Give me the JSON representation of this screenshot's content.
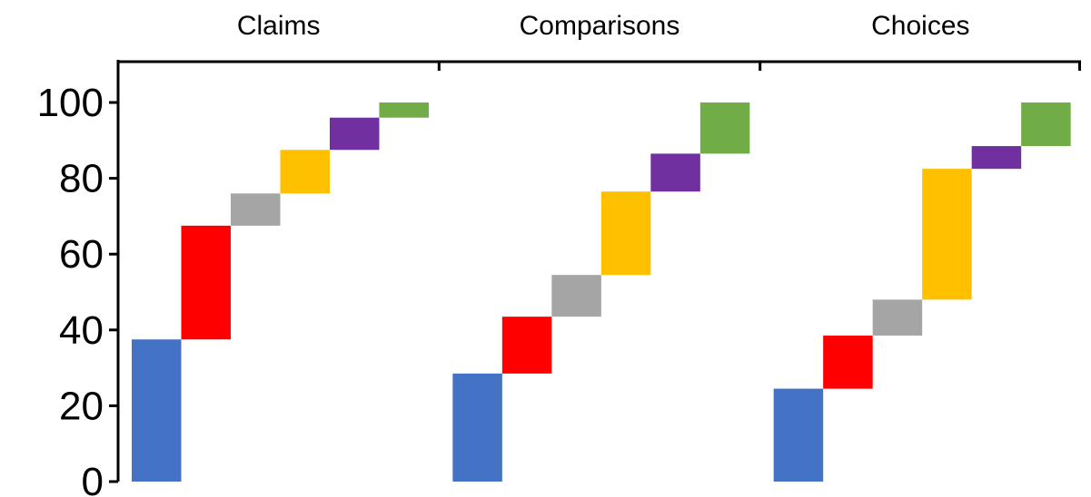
{
  "chart_data": {
    "type": "bar",
    "subtype": "waterfall",
    "title": "",
    "xlabel": "",
    "ylabel": "",
    "ylim": [
      0,
      100
    ],
    "yticks": [
      0,
      20,
      40,
      60,
      80,
      100
    ],
    "y_tick_labels": [
      "0",
      "20",
      "40",
      "60",
      "80",
      "100"
    ],
    "category_axis_position": "top",
    "grid": false,
    "legend": "none",
    "segment_colors": [
      "#4472C4",
      "#FF0000",
      "#A5A5A5",
      "#FFC000",
      "#7030A0",
      "#70AD47"
    ],
    "groups": [
      {
        "label": "Claims",
        "values": [
          37.5,
          30.0,
          8.5,
          11.5,
          8.5,
          4.0
        ]
      },
      {
        "label": "Comparisons",
        "values": [
          28.5,
          15.0,
          11.0,
          22.0,
          10.0,
          13.5
        ]
      },
      {
        "label": "Choices",
        "values": [
          24.5,
          14.0,
          9.5,
          34.5,
          6.0,
          11.5
        ]
      }
    ]
  }
}
